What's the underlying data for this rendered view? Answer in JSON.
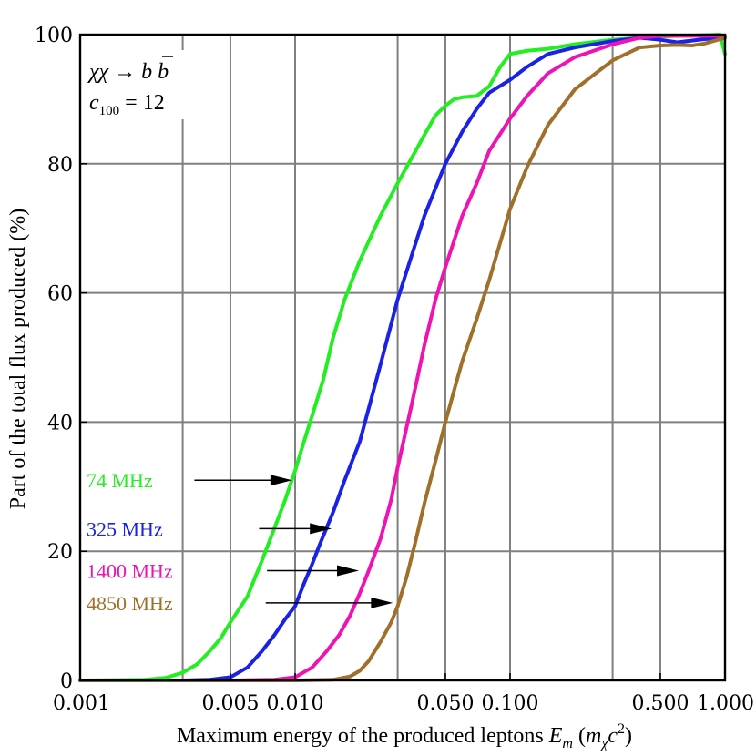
{
  "chart_data": {
    "type": "line",
    "xscale": "log",
    "xlim": [
      0.001,
      1.0
    ],
    "ylim": [
      0,
      100
    ],
    "xlabel_main": "Maximum energy of the produced leptons",
    "xlabel_var": "E",
    "xlabel_sub": "m",
    "xlabel_unit_open": "(",
    "xlabel_unit_m": "m",
    "xlabel_unit_chi": "χ",
    "xlabel_unit_c": "c",
    "xlabel_unit_exp": "2",
    "xlabel_unit_close": ")",
    "ylabel": "Part of the total flux produced (%)",
    "xticks": [
      {
        "value": 0.001,
        "label": "0.001"
      },
      {
        "value": 0.005,
        "label": "0.005"
      },
      {
        "value": 0.01,
        "label": "0.010"
      },
      {
        "value": 0.05,
        "label": "0.050"
      },
      {
        "value": 0.1,
        "label": "0.100"
      },
      {
        "value": 0.5,
        "label": "0.500"
      },
      {
        "value": 1.0,
        "label": "1.000"
      }
    ],
    "xgrid": [
      0.003,
      0.005,
      0.01,
      0.03,
      0.05,
      0.1,
      0.3,
      0.5
    ],
    "yticks": [
      0,
      20,
      40,
      60,
      80,
      100
    ],
    "annotation": {
      "line1": "χχ → b b",
      "line2_var": "c",
      "line2_sub": "100",
      "line2_rest": " = 12"
    },
    "series": [
      {
        "name": "74 MHz",
        "color": "#22ee22",
        "label_y": 31,
        "arrow_from_x": 0.0034,
        "arrow_to_x": 0.0097,
        "points": [
          [
            0.001,
            0
          ],
          [
            0.002,
            0.1
          ],
          [
            0.0025,
            0.4
          ],
          [
            0.003,
            1.2
          ],
          [
            0.0035,
            2.5
          ],
          [
            0.004,
            4.5
          ],
          [
            0.0045,
            6.5
          ],
          [
            0.005,
            9
          ],
          [
            0.006,
            13
          ],
          [
            0.007,
            18.5
          ],
          [
            0.008,
            23.5
          ],
          [
            0.009,
            28
          ],
          [
            0.01,
            32.5
          ],
          [
            0.011,
            37
          ],
          [
            0.012,
            41
          ],
          [
            0.0135,
            46.5
          ],
          [
            0.015,
            53
          ],
          [
            0.017,
            59
          ],
          [
            0.02,
            65
          ],
          [
            0.025,
            72
          ],
          [
            0.03,
            77
          ],
          [
            0.035,
            81
          ],
          [
            0.04,
            84.5
          ],
          [
            0.045,
            87.5
          ],
          [
            0.05,
            89
          ],
          [
            0.055,
            90
          ],
          [
            0.06,
            90.3
          ],
          [
            0.07,
            90.5
          ],
          [
            0.08,
            92
          ],
          [
            0.09,
            95
          ],
          [
            0.1,
            97
          ],
          [
            0.12,
            97.5
          ],
          [
            0.15,
            97.8
          ],
          [
            0.2,
            98.5
          ],
          [
            0.3,
            99.2
          ],
          [
            0.4,
            99.5
          ],
          [
            0.6,
            99.8
          ],
          [
            0.8,
            99.9
          ],
          [
            0.95,
            100
          ],
          [
            1.0,
            97
          ]
        ]
      },
      {
        "name": "325 MHz",
        "color": "#1a22e6",
        "label_y": 23.5,
        "arrow_from_x": 0.0068,
        "arrow_to_x": 0.0148,
        "points": [
          [
            0.001,
            0
          ],
          [
            0.003,
            0
          ],
          [
            0.004,
            0.1
          ],
          [
            0.005,
            0.5
          ],
          [
            0.006,
            2
          ],
          [
            0.007,
            4.5
          ],
          [
            0.008,
            7
          ],
          [
            0.009,
            9.5
          ],
          [
            0.01,
            11.5
          ],
          [
            0.011,
            15
          ],
          [
            0.012,
            18
          ],
          [
            0.013,
            21
          ],
          [
            0.015,
            26
          ],
          [
            0.017,
            31
          ],
          [
            0.02,
            37
          ],
          [
            0.025,
            49
          ],
          [
            0.03,
            59
          ],
          [
            0.035,
            66
          ],
          [
            0.04,
            72
          ],
          [
            0.05,
            80
          ],
          [
            0.06,
            85
          ],
          [
            0.07,
            88.5
          ],
          [
            0.08,
            91
          ],
          [
            0.1,
            93
          ],
          [
            0.12,
            95
          ],
          [
            0.15,
            97
          ],
          [
            0.2,
            98
          ],
          [
            0.3,
            99
          ],
          [
            0.4,
            99.5
          ],
          [
            0.5,
            99.2
          ],
          [
            0.6,
            98.8
          ],
          [
            0.8,
            99.3
          ],
          [
            1.0,
            99.5
          ]
        ]
      },
      {
        "name": "1400 MHz",
        "color": "#ee14b4",
        "label_y": 17,
        "arrow_from_x": 0.0074,
        "arrow_to_x": 0.0198,
        "points": [
          [
            0.001,
            0
          ],
          [
            0.005,
            0
          ],
          [
            0.008,
            0.1
          ],
          [
            0.01,
            0.5
          ],
          [
            0.012,
            2
          ],
          [
            0.014,
            4.5
          ],
          [
            0.016,
            7
          ],
          [
            0.018,
            10
          ],
          [
            0.02,
            13.5
          ],
          [
            0.022,
            17
          ],
          [
            0.025,
            22
          ],
          [
            0.028,
            28
          ],
          [
            0.03,
            33
          ],
          [
            0.035,
            43
          ],
          [
            0.04,
            52
          ],
          [
            0.045,
            59
          ],
          [
            0.05,
            64
          ],
          [
            0.06,
            72
          ],
          [
            0.07,
            77
          ],
          [
            0.08,
            82
          ],
          [
            0.1,
            87
          ],
          [
            0.12,
            90.5
          ],
          [
            0.15,
            94
          ],
          [
            0.2,
            96.5
          ],
          [
            0.3,
            98.5
          ],
          [
            0.4,
            99.5
          ],
          [
            0.5,
            99.8
          ],
          [
            0.7,
            99.8
          ],
          [
            1.0,
            99.8
          ]
        ]
      },
      {
        "name": "4850 MHz",
        "color": "#a0702a",
        "label_y": 12,
        "arrow_from_x": 0.0073,
        "arrow_to_x": 0.0285,
        "points": [
          [
            0.001,
            0
          ],
          [
            0.01,
            0
          ],
          [
            0.015,
            0.1
          ],
          [
            0.018,
            0.6
          ],
          [
            0.02,
            1.5
          ],
          [
            0.022,
            3
          ],
          [
            0.025,
            6
          ],
          [
            0.028,
            9
          ],
          [
            0.03,
            11.5
          ],
          [
            0.033,
            16
          ],
          [
            0.036,
            21
          ],
          [
            0.04,
            27.5
          ],
          [
            0.045,
            34
          ],
          [
            0.05,
            40
          ],
          [
            0.055,
            45
          ],
          [
            0.06,
            49.5
          ],
          [
            0.07,
            56
          ],
          [
            0.08,
            62
          ],
          [
            0.1,
            73
          ],
          [
            0.12,
            79.5
          ],
          [
            0.15,
            86
          ],
          [
            0.2,
            91.5
          ],
          [
            0.25,
            94
          ],
          [
            0.3,
            96
          ],
          [
            0.4,
            98
          ],
          [
            0.5,
            98.3
          ],
          [
            0.6,
            98.4
          ],
          [
            0.7,
            98.3
          ],
          [
            0.8,
            98.6
          ],
          [
            1.0,
            99.5
          ]
        ]
      }
    ]
  }
}
